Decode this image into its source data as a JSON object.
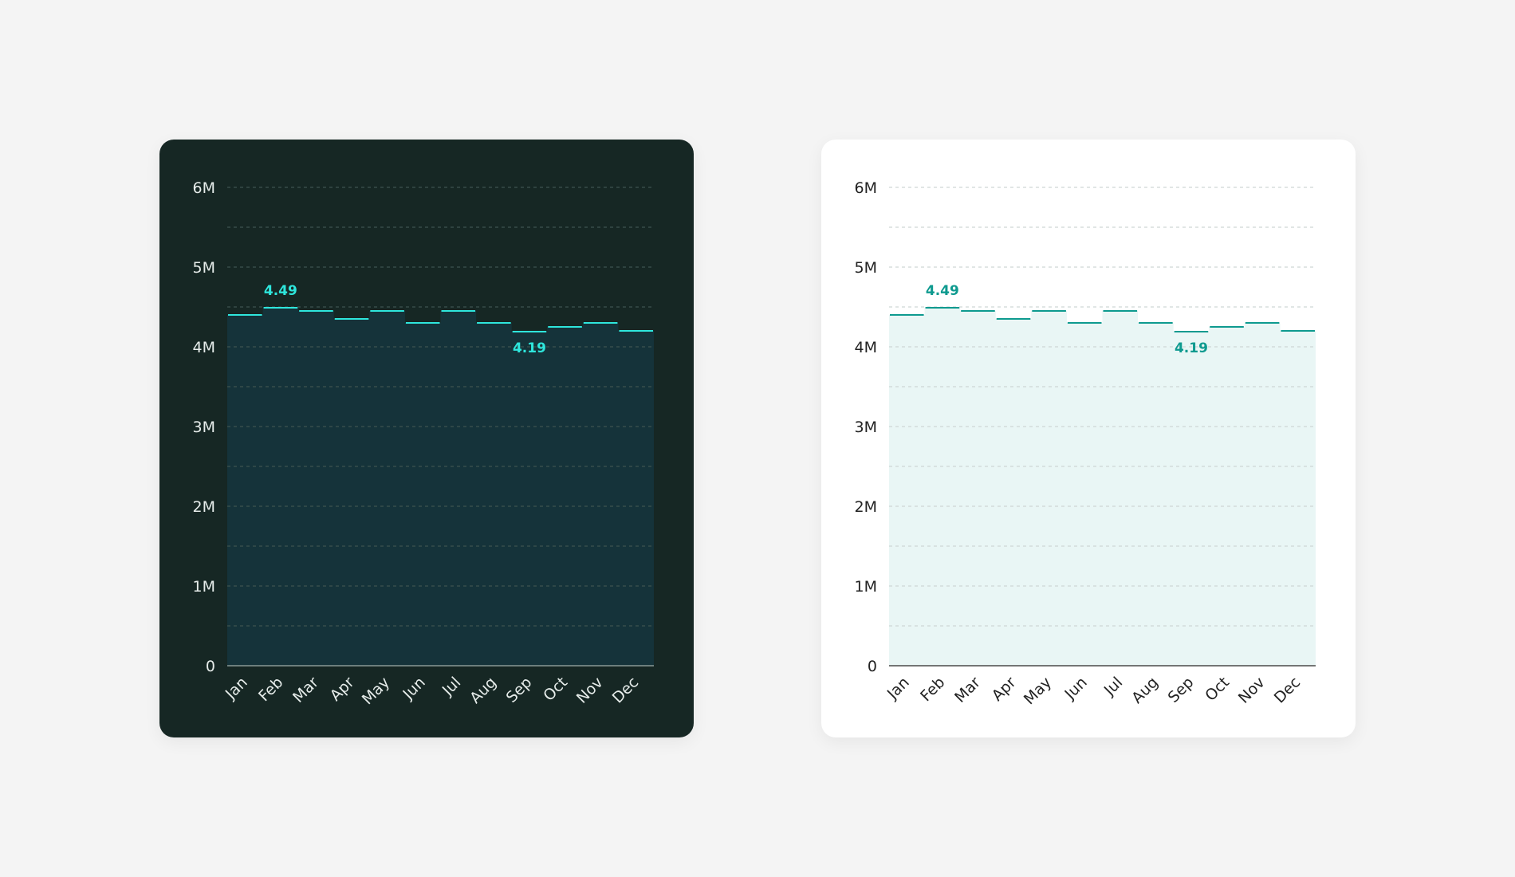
{
  "chart_data": [
    {
      "type": "line",
      "theme": "dark",
      "categories": [
        "Jan",
        "Feb",
        "Mar",
        "Apr",
        "May",
        "Jun",
        "Jul",
        "Aug",
        "Sep",
        "Oct",
        "Nov",
        "Dec"
      ],
      "values": [
        4.4,
        4.49,
        4.45,
        4.35,
        4.45,
        4.3,
        4.45,
        4.3,
        4.19,
        4.25,
        4.3,
        4.2
      ],
      "ylim": [
        0,
        6
      ],
      "yticks": [
        "0",
        "1M",
        "2M",
        "3M",
        "4M",
        "5M",
        "6M"
      ],
      "annotations": [
        {
          "category": "Feb",
          "label": "4.49",
          "position": "above"
        },
        {
          "category": "Sep",
          "label": "4.19",
          "position": "below"
        }
      ],
      "grid": true,
      "colors": {
        "card": "#162724",
        "line": "#2ee6dc",
        "fill": "#15333a",
        "text": "#e6ecea",
        "grid": "#3e534f",
        "axis": "#8a9a96",
        "label": "#2ee6dc"
      }
    },
    {
      "type": "line",
      "theme": "light",
      "categories": [
        "Jan",
        "Feb",
        "Mar",
        "Apr",
        "May",
        "Jun",
        "Jul",
        "Aug",
        "Sep",
        "Oct",
        "Nov",
        "Dec"
      ],
      "values": [
        4.4,
        4.49,
        4.45,
        4.35,
        4.45,
        4.3,
        4.45,
        4.3,
        4.19,
        4.25,
        4.3,
        4.2
      ],
      "ylim": [
        0,
        6
      ],
      "yticks": [
        "0",
        "1M",
        "2M",
        "3M",
        "4M",
        "5M",
        "6M"
      ],
      "annotations": [
        {
          "category": "Feb",
          "label": "4.49",
          "position": "above"
        },
        {
          "category": "Sep",
          "label": "4.19",
          "position": "below"
        }
      ],
      "grid": true,
      "colors": {
        "card": "#ffffff",
        "line": "#0e9a8f",
        "fill": "#e9f6f5",
        "text": "#222222",
        "grid": "#cfd6d5",
        "axis": "#4a4a4a",
        "label": "#0e9a8f"
      }
    }
  ]
}
